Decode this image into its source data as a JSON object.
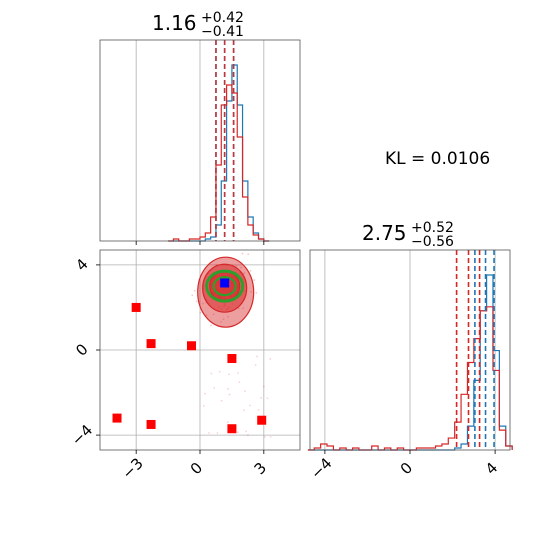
{
  "colors": {
    "blue_series": "#1f77b4",
    "red_series": "#d62728",
    "green_contour": "#2ca02c",
    "marker_red": "#ff0000",
    "marker_blue": "#0000ff"
  },
  "annotation": {
    "kl_text": "KL = 0.0106"
  },
  "chart_data": [
    {
      "panel": "top-left",
      "type": "histogram",
      "title": {
        "value": "1.16",
        "plus": "+0.42",
        "minus": "−0.41"
      },
      "xlim": [
        -4.7,
        4.7
      ],
      "bins": [
        -1.5,
        -1.25,
        -1.0,
        -0.75,
        -0.5,
        -0.25,
        0.0,
        0.25,
        0.5,
        0.75,
        1.0,
        1.25,
        1.5,
        1.75,
        2.0,
        2.25,
        2.5,
        2.75,
        3.0,
        3.25
      ],
      "series": [
        {
          "color_key": "blue_series",
          "counts": [
            0,
            0,
            0,
            0,
            0,
            0,
            0,
            1,
            2,
            8,
            30,
            70,
            88,
            68,
            30,
            12,
            4,
            1,
            0
          ]
        },
        {
          "color_key": "red_series",
          "counts": [
            0,
            1,
            0,
            0,
            1,
            1,
            2,
            4,
            12,
            38,
            68,
            78,
            74,
            52,
            22,
            8,
            3,
            1,
            0
          ]
        }
      ],
      "quantile_lines": [
        {
          "color_key": "blue_series",
          "values": [
            0.75,
            1.16,
            1.58
          ]
        },
        {
          "color_key": "red_series",
          "values": [
            0.75,
            1.16,
            1.58
          ]
        }
      ],
      "grid": true
    },
    {
      "panel": "bottom-left",
      "type": "scatter",
      "xlim": [
        -4.7,
        4.7
      ],
      "ylim": [
        -4.7,
        4.7
      ],
      "xticks": [
        -3,
        0,
        3
      ],
      "yticks": [
        -4,
        0,
        4
      ],
      "red_markers": [
        [
          -3.0,
          2.0
        ],
        [
          -2.3,
          0.3
        ],
        [
          -0.4,
          0.2
        ],
        [
          1.5,
          -0.4
        ],
        [
          -3.9,
          -3.2
        ],
        [
          -2.3,
          -3.5
        ],
        [
          1.5,
          -3.7
        ],
        [
          2.9,
          -3.3
        ]
      ],
      "blue_marker": [
        1.16,
        3.15
      ],
      "contour_center": [
        1.16,
        3.0
      ],
      "grid": true
    },
    {
      "panel": "bottom-right",
      "type": "histogram",
      "title": {
        "value": "2.75",
        "plus": "+0.52",
        "minus": "−0.56"
      },
      "xlim": [
        -4.7,
        4.7
      ],
      "xticks": [
        -4,
        0,
        4
      ],
      "bins": [
        -4.8,
        -4.5,
        -4.2,
        -3.9,
        -3.6,
        -3.3,
        -3.0,
        -2.7,
        -2.4,
        -2.1,
        -1.8,
        -1.5,
        -1.2,
        -0.9,
        -0.6,
        -0.3,
        0.0,
        0.3,
        0.6,
        0.9,
        1.2,
        1.5,
        1.8,
        2.1,
        2.4,
        2.7,
        3.0,
        3.3,
        3.6,
        3.9,
        4.2,
        4.5,
        4.8
      ],
      "series": [
        {
          "color_key": "blue_series",
          "counts": [
            0,
            0,
            0,
            0,
            0,
            0,
            0,
            0,
            0,
            0,
            0,
            0,
            0,
            0,
            0,
            0,
            0,
            0,
            0,
            0,
            0,
            0,
            0,
            1,
            3,
            12,
            35,
            70,
            88,
            50,
            12,
            2
          ]
        },
        {
          "color_key": "red_series",
          "counts": [
            0,
            1,
            3,
            2,
            0,
            1,
            0,
            1,
            0,
            0,
            2,
            0,
            1,
            0,
            1,
            0,
            0,
            1,
            1,
            1,
            2,
            3,
            6,
            14,
            28,
            44,
            56,
            70,
            72,
            40,
            10,
            2
          ]
        }
      ],
      "quantile_lines": [
        {
          "color_key": "blue_series",
          "values": [
            3.05,
            3.55,
            3.95
          ]
        },
        {
          "color_key": "red_series",
          "values": [
            2.19,
            2.75,
            3.27
          ]
        }
      ],
      "grid": true
    }
  ]
}
